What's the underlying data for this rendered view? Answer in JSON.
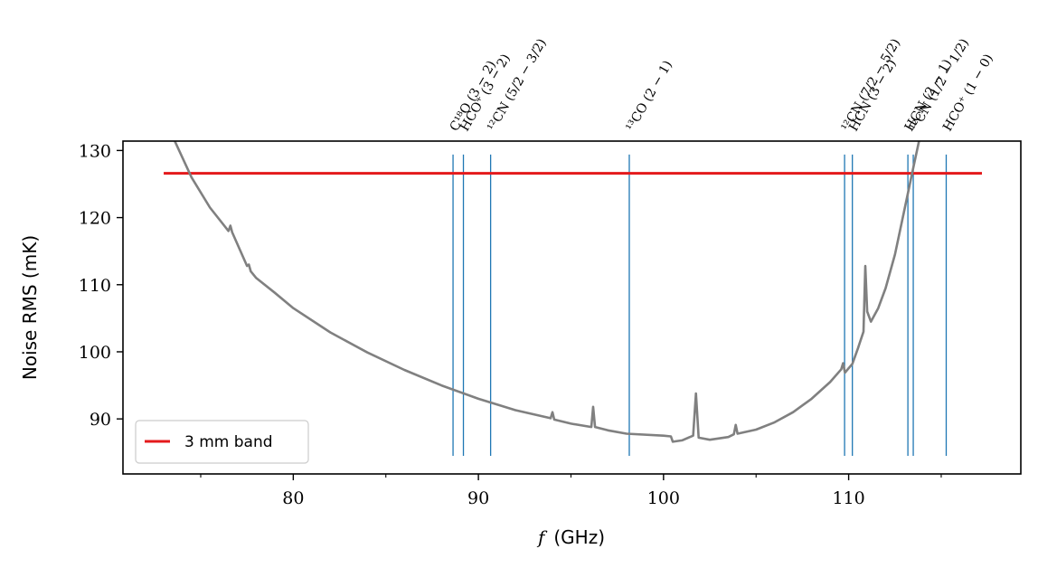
{
  "chart_data": {
    "type": "line",
    "xlabel_var": "f",
    "xlabel_unit": "(GHz)",
    "ylabel": "Noise RMS (mK)",
    "xlim": [
      70.8,
      119.3
    ],
    "ylim": [
      81.8,
      131.4
    ],
    "x_ticks": [
      80,
      90,
      100,
      110
    ],
    "x_minor_ticks": [
      75,
      85,
      95,
      105,
      115
    ],
    "y_ticks": [
      90,
      100,
      110,
      120,
      130
    ],
    "colors": {
      "noise_curve": "#808080",
      "band": "#e41a1c",
      "lines": "#1f77b4"
    },
    "series": [
      {
        "name": "3 mm band",
        "x": [
          73.0,
          117.2
        ],
        "y": [
          126.6,
          126.6
        ]
      },
      {
        "name": "",
        "x": [
          73.6,
          74.5,
          75.5,
          76.5,
          76.6,
          76.7,
          77.5,
          77.6,
          77.7,
          78.0,
          79.0,
          80.0,
          82.0,
          84.0,
          86.0,
          88.0,
          90.0,
          92.0,
          93.9,
          94.0,
          94.1,
          95.0,
          96.1,
          96.2,
          96.3,
          97.0,
          98.0,
          100.0,
          100.4,
          100.5,
          101.0,
          101.6,
          101.75,
          101.9,
          102.5,
          103.5,
          103.8,
          103.9,
          104.0,
          105.0,
          106.0,
          107.0,
          108.0,
          109.0,
          109.6,
          109.7,
          109.8,
          110.2,
          110.5,
          110.8,
          110.9,
          111.0,
          111.2,
          111.6,
          112.0,
          112.5,
          113.0,
          113.5,
          113.8
        ],
        "y": [
          131.4,
          126.0,
          121.5,
          118.0,
          118.8,
          117.8,
          112.8,
          113.0,
          112.0,
          111.0,
          108.8,
          106.5,
          102.9,
          99.9,
          97.3,
          95.0,
          93.0,
          91.3,
          90.1,
          91.0,
          89.9,
          89.3,
          88.8,
          91.8,
          88.8,
          88.3,
          87.8,
          87.5,
          87.4,
          86.6,
          86.8,
          87.5,
          93.8,
          87.2,
          86.9,
          87.3,
          87.7,
          89.1,
          87.8,
          88.4,
          89.5,
          91.0,
          93.0,
          95.5,
          97.4,
          98.3,
          96.9,
          98.2,
          100.5,
          103.0,
          112.8,
          106.0,
          104.5,
          106.5,
          109.5,
          114.5,
          121.0,
          127.5,
          131.4
        ]
      }
    ],
    "lines": [
      {
        "freq": 88.63,
        "label": "C¹⁸O (3 − 2)"
      },
      {
        "freq": 89.19,
        "label": "HCO⁺ (3 − 2)"
      },
      {
        "freq": 90.66,
        "label": "¹²CN (5/2 − 3/2)"
      },
      {
        "freq": 98.15,
        "label": "¹³CO (2 − 1)"
      },
      {
        "freq": 109.78,
        "label": "¹²CN (7/2 − 5/2)"
      },
      {
        "freq": 110.2,
        "label": "HCN (3 − 2)"
      },
      {
        "freq": 113.2,
        "label": "HCN (2 − 1)"
      },
      {
        "freq": 113.49,
        "label": "¹²CN (1/2 − 1/2)"
      },
      {
        "freq": 115.27,
        "label": "HCO⁺ (1 − 0)"
      }
    ],
    "lines_y_range": [
      84.5,
      129.4
    ],
    "legend": {
      "position": "lower-left",
      "entries": [
        "3 mm band"
      ]
    }
  }
}
